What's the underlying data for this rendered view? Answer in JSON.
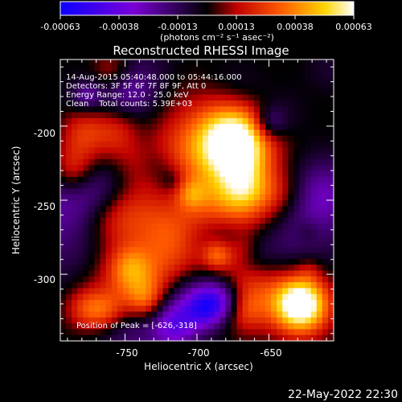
{
  "colorbar": {
    "ticks": [
      "-0.00063",
      "-0.00038",
      "-0.00013",
      "0.00013",
      "0.00038",
      "0.00063"
    ],
    "units": "(photons cm⁻² s⁻¹ asec⁻²)",
    "colors": [
      "#0b00ff",
      "#7a00d6",
      "#000000",
      "#c00000",
      "#ff5a00",
      "#ffd400",
      "#ffffff"
    ]
  },
  "chart_data": {
    "type": "heatmap",
    "title": "Reconstructed RHESSI Image",
    "xlabel": "Heliocentric X (arcsec)",
    "ylabel": "Heliocentric Y (arcsec)",
    "xlim": [
      -795,
      -605
    ],
    "ylim": [
      -345,
      -155
    ],
    "xticks": [
      -750,
      -700,
      -650
    ],
    "yticks": [
      -200,
      -250,
      -300
    ],
    "value_range": [
      -0.00063,
      0.00063
    ],
    "info_lines": [
      "14-Aug-2015 05:40:48.000 to 05:44:16.000",
      "Detectors: 3F 5F 6F 7F 8F 9F, Att 0",
      "Energy Range: 12.0 - 25.0 keV",
      "Clean    Total counts: 5.39E+03"
    ],
    "peak_label": "Position of Peak = [-626,-318]",
    "peak_position": [
      -626,
      -318
    ]
  },
  "footer": {
    "date": "22-May-2022 22:30"
  }
}
